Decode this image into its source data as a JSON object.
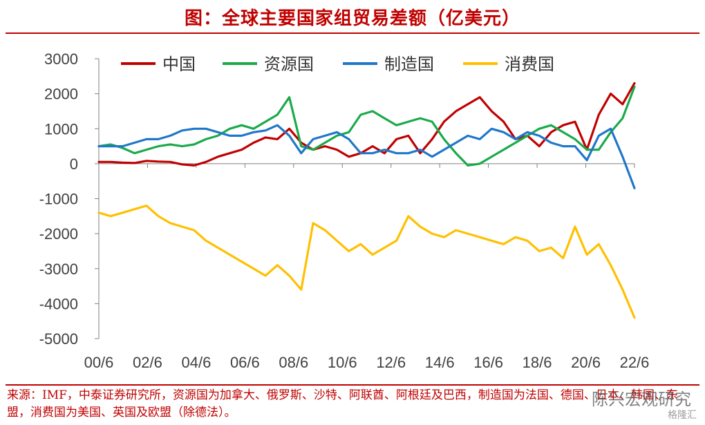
{
  "title": "图：全球主要国家组贸易差额（亿美元）",
  "source": "来源：IMF，中泰证券研究所，资源国为加拿大、俄罗斯、沙特、阿联酋、阿根廷及巴西，制造国为法国、德国、日本、韩国、东盟，消费国为美国、英国及欧盟（除德法）。",
  "watermark": "陈兴宏观研究",
  "watermark2": "格隆汇",
  "chart_data": {
    "type": "line",
    "x_tick_labels": [
      "00/6",
      "02/6",
      "04/6",
      "06/6",
      "08/6",
      "10/6",
      "12/6",
      "14/6",
      "16/6",
      "18/6",
      "20/6",
      "22/6"
    ],
    "x": [
      2000.0,
      2000.5,
      2001.0,
      2001.5,
      2002.0,
      2002.5,
      2003.0,
      2003.5,
      2004.0,
      2004.5,
      2005.0,
      2005.5,
      2006.0,
      2006.5,
      2007.0,
      2007.5,
      2008.0,
      2008.5,
      2009.0,
      2009.5,
      2010.0,
      2010.5,
      2011.0,
      2011.5,
      2012.0,
      2012.5,
      2013.0,
      2013.5,
      2014.0,
      2014.5,
      2015.0,
      2015.5,
      2016.0,
      2016.5,
      2017.0,
      2017.5,
      2018.0,
      2018.5,
      2019.0,
      2019.5,
      2020.0,
      2020.5,
      2021.0,
      2021.5,
      2022.0,
      2022.5
    ],
    "ylim": [
      -5000,
      3000
    ],
    "y_ticks": [
      3000,
      2000,
      1000,
      0,
      -1000,
      -2000,
      -3000,
      -4000,
      -5000
    ],
    "legend_position": "top",
    "series": [
      {
        "name": "中国",
        "color": "#c00000",
        "values": [
          50,
          50,
          30,
          20,
          80,
          60,
          50,
          -20,
          -50,
          50,
          200,
          300,
          400,
          600,
          750,
          700,
          1000,
          600,
          400,
          500,
          400,
          200,
          300,
          500,
          300,
          700,
          800,
          300,
          700,
          1200,
          1500,
          1700,
          1900,
          1500,
          1200,
          700,
          800,
          500,
          900,
          1100,
          1200,
          400,
          1400,
          2000,
          1700,
          2300
        ]
      },
      {
        "name": "资源国",
        "color": "#1aaa4a",
        "values": [
          500,
          550,
          450,
          300,
          400,
          500,
          550,
          500,
          550,
          700,
          800,
          1000,
          1100,
          1000,
          1200,
          1400,
          1900,
          500,
          400,
          600,
          800,
          900,
          1400,
          1500,
          1300,
          1100,
          1200,
          1300,
          1200,
          700,
          300,
          -50,
          0,
          200,
          400,
          600,
          800,
          1000,
          1100,
          900,
          700,
          400,
          400,
          900,
          1300,
          2200
        ]
      },
      {
        "name": "制造国",
        "color": "#1f77c9",
        "values": [
          500,
          500,
          500,
          600,
          700,
          700,
          800,
          950,
          1000,
          1000,
          900,
          800,
          800,
          900,
          950,
          1100,
          800,
          300,
          700,
          800,
          900,
          700,
          300,
          300,
          400,
          300,
          300,
          400,
          200,
          400,
          600,
          800,
          700,
          1000,
          900,
          700,
          900,
          800,
          600,
          500,
          500,
          100,
          800,
          1000,
          200,
          -700
        ]
      },
      {
        "name": "消费国",
        "color": "#ffc000",
        "values": [
          -1400,
          -1500,
          -1400,
          -1300,
          -1200,
          -1500,
          -1700,
          -1800,
          -1900,
          -2200,
          -2400,
          -2600,
          -2800,
          -3000,
          -3200,
          -2900,
          -3200,
          -3600,
          -1700,
          -1900,
          -2200,
          -2500,
          -2300,
          -2600,
          -2400,
          -2200,
          -1500,
          -1800,
          -2000,
          -2100,
          -1900,
          -2000,
          -2100,
          -2200,
          -2300,
          -2100,
          -2200,
          -2500,
          -2400,
          -2700,
          -1800,
          -2600,
          -2300,
          -2900,
          -3600,
          -4400
        ]
      }
    ]
  }
}
